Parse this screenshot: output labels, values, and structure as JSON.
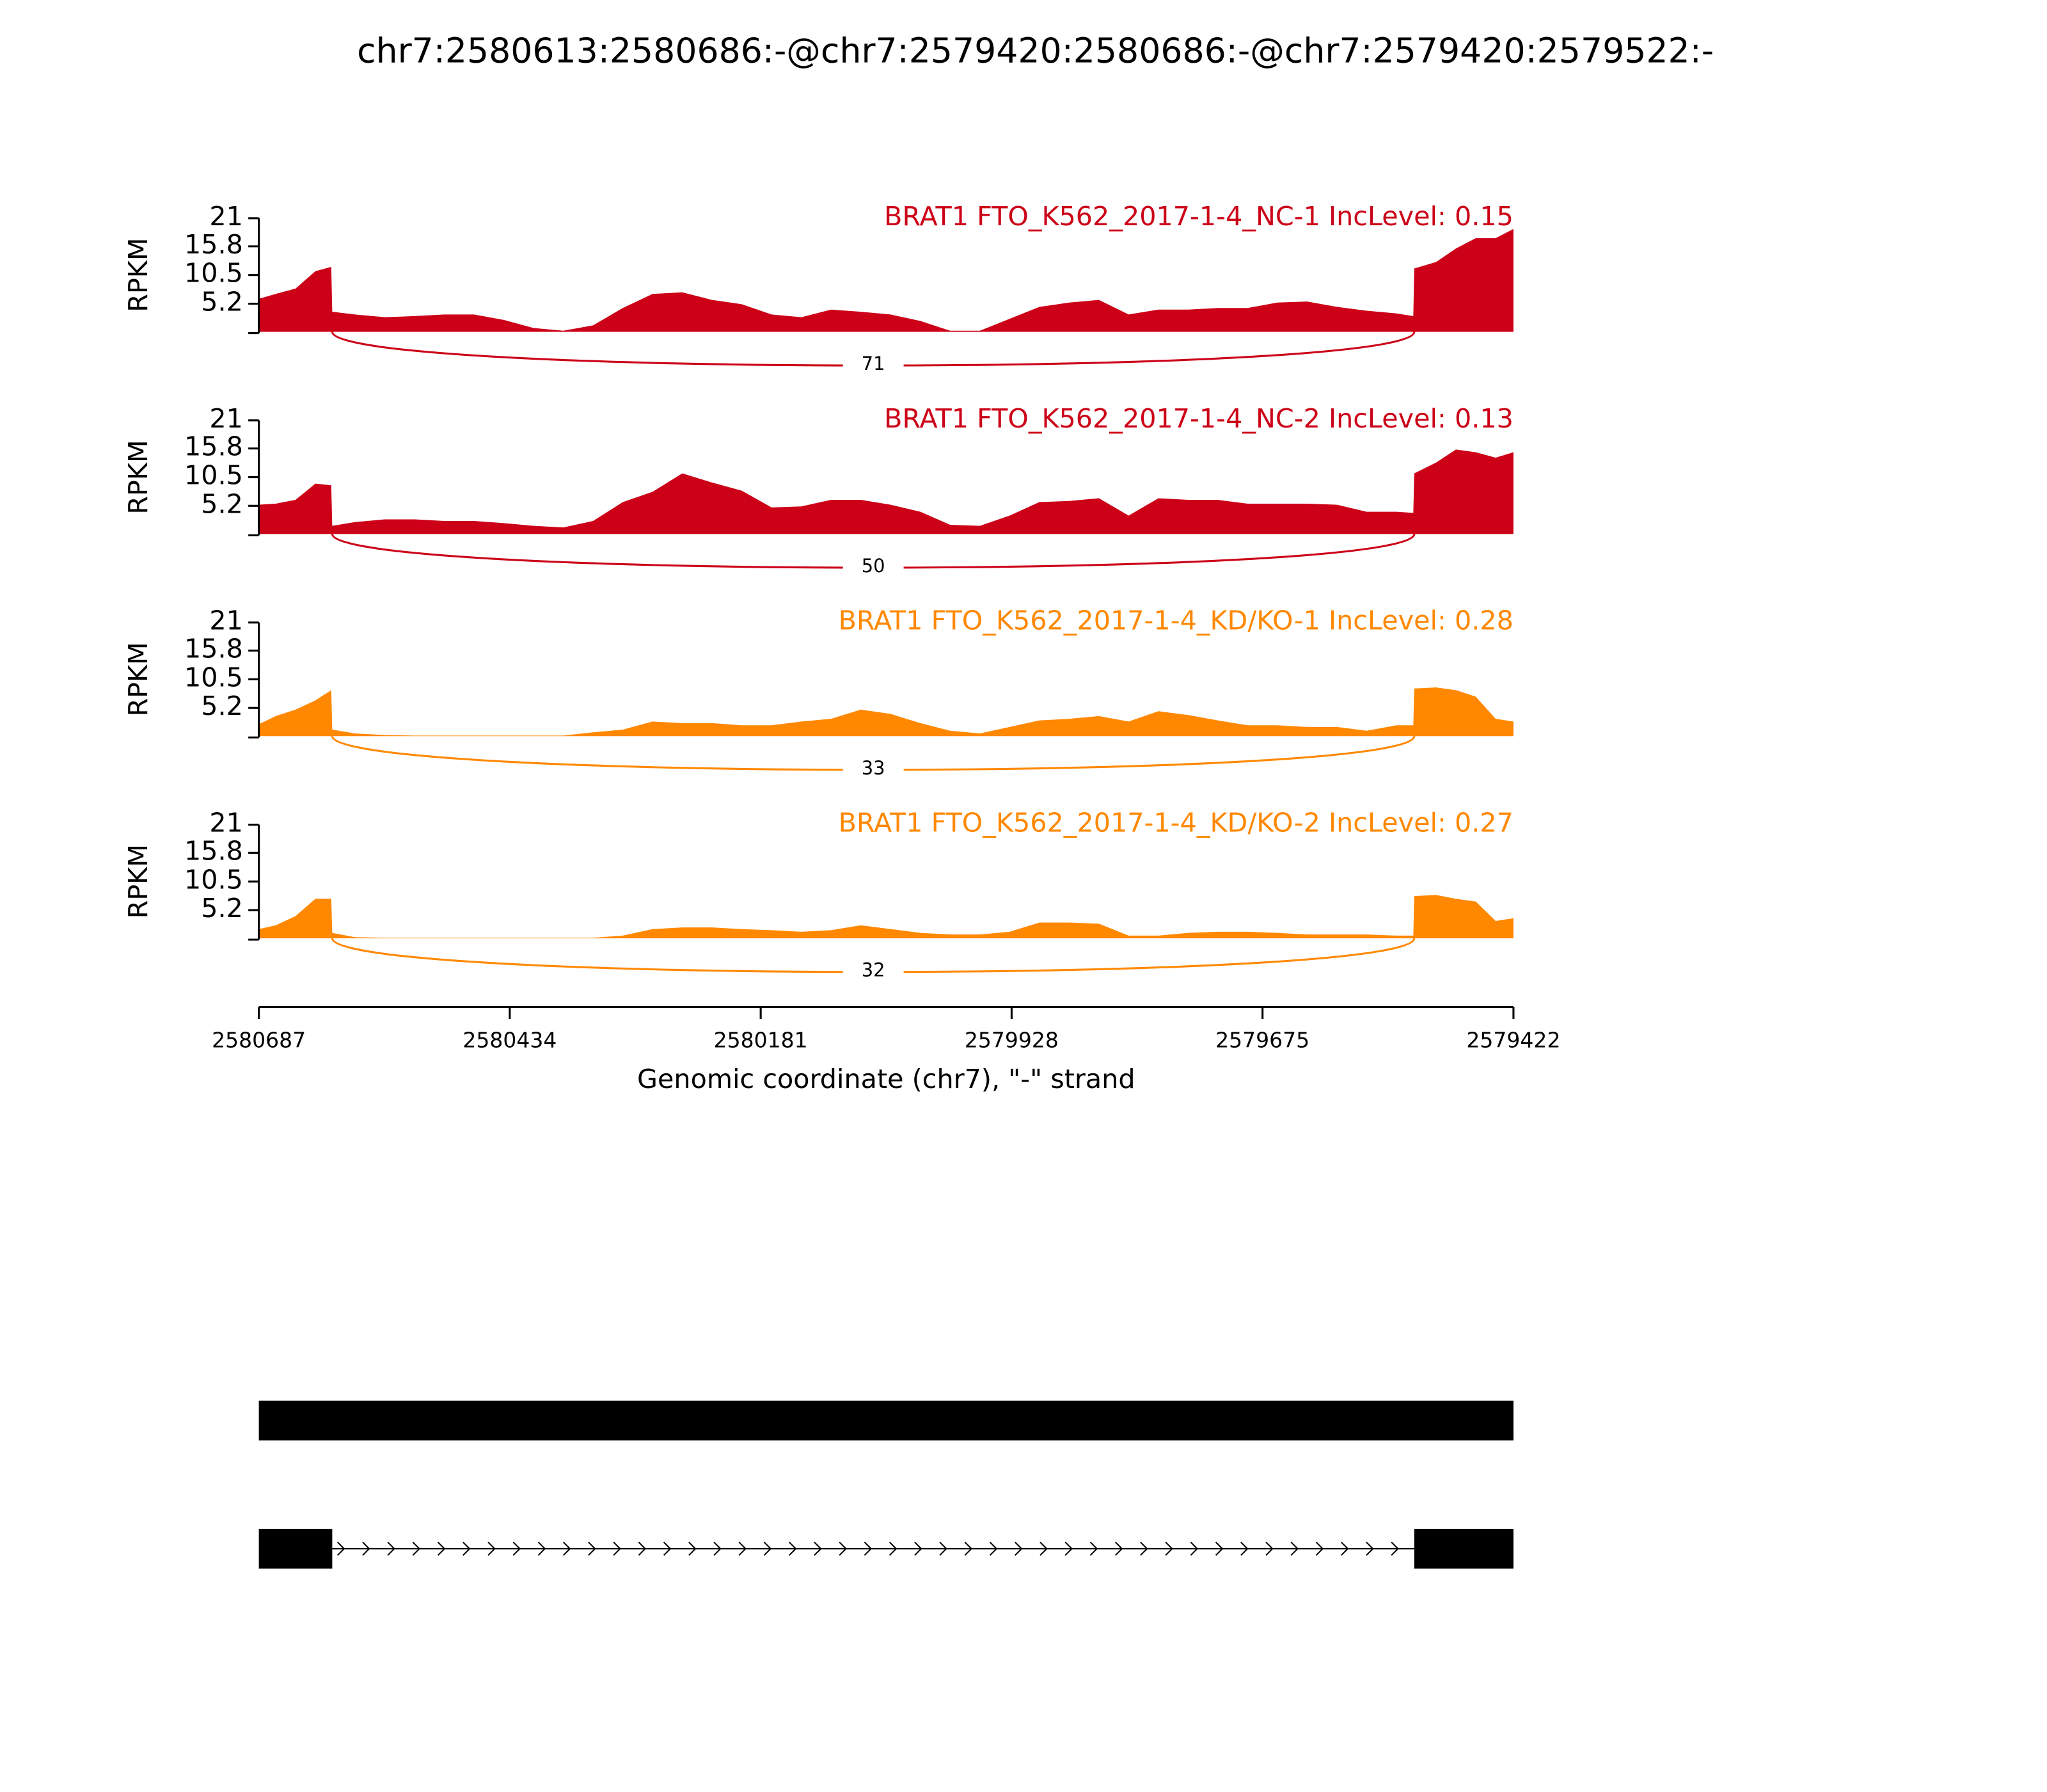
{
  "title": "chr7:2580613:2580686:-@chr7:2579420:2580686:-@chr7:2579420:2579522:-",
  "chart_data": [
    {
      "type": "area",
      "title": "BRAT1 FTO_K562_2017-1-4_NC-1 IncLevel: 0.15",
      "color": "#cc0017",
      "ylabel": "RPKM",
      "ylim": [
        0,
        21
      ],
      "yticks": [
        5.2,
        10.5,
        15.8,
        21
      ],
      "xlim": [
        2580687,
        2579422
      ],
      "x": [
        2580687,
        2580670,
        2580650,
        2580630,
        2580614,
        2580613,
        2580590,
        2580560,
        2580530,
        2580500,
        2580470,
        2580440,
        2580410,
        2580380,
        2580350,
        2580320,
        2580290,
        2580260,
        2580230,
        2580200,
        2580170,
        2580140,
        2580110,
        2580080,
        2580050,
        2580020,
        2579990,
        2579960,
        2579930,
        2579900,
        2579870,
        2579840,
        2579810,
        2579780,
        2579750,
        2579720,
        2579690,
        2579660,
        2579630,
        2579600,
        2579570,
        2579540,
        2579523,
        2579522,
        2579500,
        2579480,
        2579460,
        2579440,
        2579422
      ],
      "values": [
        6.1,
        7,
        8,
        11.2,
        12,
        3.7,
        3.2,
        2.7,
        2.9,
        3.2,
        3.2,
        2.2,
        0.7,
        0.2,
        1.2,
        4.4,
        7,
        7.3,
        5.9,
        5.1,
        3.2,
        2.7,
        4.1,
        3.7,
        3.2,
        2,
        0.2,
        0.2,
        2.4,
        4.6,
        5.4,
        5.9,
        3.2,
        4.1,
        4.1,
        4.4,
        4.4,
        5.4,
        5.6,
        4.6,
        3.9,
        3.4,
        2.9,
        11.7,
        12.9,
        15.4,
        17.3,
        17.3,
        19
      ],
      "junction": {
        "start": 2580613,
        "end": 2579522,
        "count": 71
      }
    },
    {
      "type": "area",
      "title": "BRAT1 FTO_K562_2017-1-4_NC-2 IncLevel: 0.13",
      "color": "#cc0017",
      "ylabel": "RPKM",
      "ylim": [
        0,
        21
      ],
      "yticks": [
        5.2,
        10.5,
        15.8,
        21
      ],
      "xlim": [
        2580687,
        2579422
      ],
      "x": [
        2580687,
        2580670,
        2580650,
        2580630,
        2580614,
        2580613,
        2580590,
        2580560,
        2580530,
        2580500,
        2580470,
        2580440,
        2580410,
        2580380,
        2580350,
        2580320,
        2580290,
        2580260,
        2580230,
        2580200,
        2580170,
        2580140,
        2580110,
        2580080,
        2580050,
        2580020,
        2579990,
        2579960,
        2579930,
        2579900,
        2579870,
        2579840,
        2579810,
        2579780,
        2579750,
        2579720,
        2579690,
        2579660,
        2579630,
        2579600,
        2579570,
        2579540,
        2579523,
        2579522,
        2579500,
        2579480,
        2579460,
        2579440,
        2579422
      ],
      "values": [
        5.4,
        5.6,
        6.3,
        9.3,
        9,
        1.5,
        2.2,
        2.7,
        2.7,
        2.4,
        2.4,
        2,
        1.5,
        1.2,
        2.4,
        5.9,
        7.8,
        11.2,
        9.5,
        8,
        4.9,
        5.1,
        6.3,
        6.3,
        5.4,
        4.1,
        1.7,
        1.5,
        3.4,
        5.9,
        6.1,
        6.6,
        3.4,
        6.6,
        6.3,
        6.3,
        5.6,
        5.6,
        5.6,
        5.4,
        4.1,
        4.1,
        3.9,
        11.2,
        13.2,
        15.6,
        15.1,
        14.1,
        15.1
      ],
      "junction": {
        "start": 2580613,
        "end": 2579522,
        "count": 50
      }
    },
    {
      "type": "area",
      "title": "BRAT1 FTO_K562_2017-1-4_KD/KO-1 IncLevel: 0.28",
      "color": "#ff8800",
      "ylabel": "RPKM",
      "ylim": [
        0,
        21
      ],
      "yticks": [
        5.2,
        10.5,
        15.8,
        21
      ],
      "xlim": [
        2580687,
        2579422
      ],
      "x": [
        2580687,
        2580670,
        2580650,
        2580630,
        2580614,
        2580613,
        2580590,
        2580560,
        2580530,
        2580500,
        2580470,
        2580440,
        2580410,
        2580380,
        2580350,
        2580320,
        2580290,
        2580260,
        2580230,
        2580200,
        2580170,
        2580140,
        2580110,
        2580080,
        2580050,
        2580020,
        2579990,
        2579960,
        2579930,
        2579900,
        2579870,
        2579840,
        2579810,
        2579780,
        2579750,
        2579720,
        2579690,
        2579660,
        2579630,
        2579600,
        2579570,
        2579540,
        2579523,
        2579522,
        2579500,
        2579480,
        2579460,
        2579440,
        2579422
      ],
      "values": [
        2.2,
        3.7,
        4.9,
        6.6,
        8.5,
        1.2,
        0.5,
        0.2,
        0.1,
        0.1,
        0.1,
        0.1,
        0.1,
        0.1,
        0.7,
        1.2,
        2.7,
        2.4,
        2.4,
        2,
        2,
        2.7,
        3.2,
        4.9,
        4.1,
        2.4,
        1,
        0.5,
        1.7,
        2.9,
        3.2,
        3.7,
        2.7,
        4.6,
        3.9,
        2.9,
        2,
        2,
        1.7,
        1.7,
        1,
        2,
        2,
        8.8,
        9,
        8.5,
        7.3,
        3.2,
        2.7
      ],
      "junction": {
        "start": 2580613,
        "end": 2579522,
        "count": 33
      }
    },
    {
      "type": "area",
      "title": "BRAT1 FTO_K562_2017-1-4_KD/KO-2 IncLevel: 0.27",
      "color": "#ff8800",
      "ylabel": "RPKM",
      "ylim": [
        0,
        21
      ],
      "yticks": [
        5.2,
        10.5,
        15.8,
        21
      ],
      "xlim": [
        2580687,
        2579422
      ],
      "xticks": [
        2580687,
        2580434,
        2580181,
        2579928,
        2579675,
        2579422
      ],
      "xlabel": "Genomic coordinate (chr7), \"-\" strand",
      "x": [
        2580687,
        2580670,
        2580650,
        2580630,
        2580614,
        2580613,
        2580590,
        2580560,
        2580530,
        2580500,
        2580470,
        2580440,
        2580410,
        2580380,
        2580350,
        2580320,
        2580290,
        2580260,
        2580230,
        2580200,
        2580170,
        2580140,
        2580110,
        2580080,
        2580050,
        2580020,
        2579990,
        2579960,
        2579930,
        2579900,
        2579870,
        2579840,
        2579810,
        2579780,
        2579750,
        2579720,
        2579690,
        2579660,
        2579630,
        2579600,
        2579570,
        2579540,
        2579523,
        2579522,
        2579500,
        2579480,
        2579460,
        2579440,
        2579422
      ],
      "values": [
        1.7,
        2.4,
        4.1,
        7.3,
        7.3,
        1,
        0.2,
        0.1,
        0.1,
        0.1,
        0.1,
        0.1,
        0.1,
        0.1,
        0.1,
        0.5,
        1.7,
        2,
        2,
        1.7,
        1.5,
        1.2,
        1.5,
        2.4,
        1.7,
        1,
        0.7,
        0.7,
        1.2,
        2.9,
        2.9,
        2.7,
        0.5,
        0.5,
        1,
        1.2,
        1.2,
        1,
        0.7,
        0.7,
        0.7,
        0.5,
        0.5,
        7.8,
        8,
        7.3,
        6.8,
        3.2,
        3.7
      ],
      "junction": {
        "start": 2580613,
        "end": 2579522,
        "count": 32
      }
    }
  ],
  "gene_model": {
    "color": "#000000",
    "transcripts": [
      {
        "exons": [
          [
            2580687,
            2579422
          ]
        ]
      },
      {
        "exons": [
          [
            2580687,
            2580613
          ],
          [
            2579522,
            2579422
          ]
        ]
      }
    ]
  }
}
